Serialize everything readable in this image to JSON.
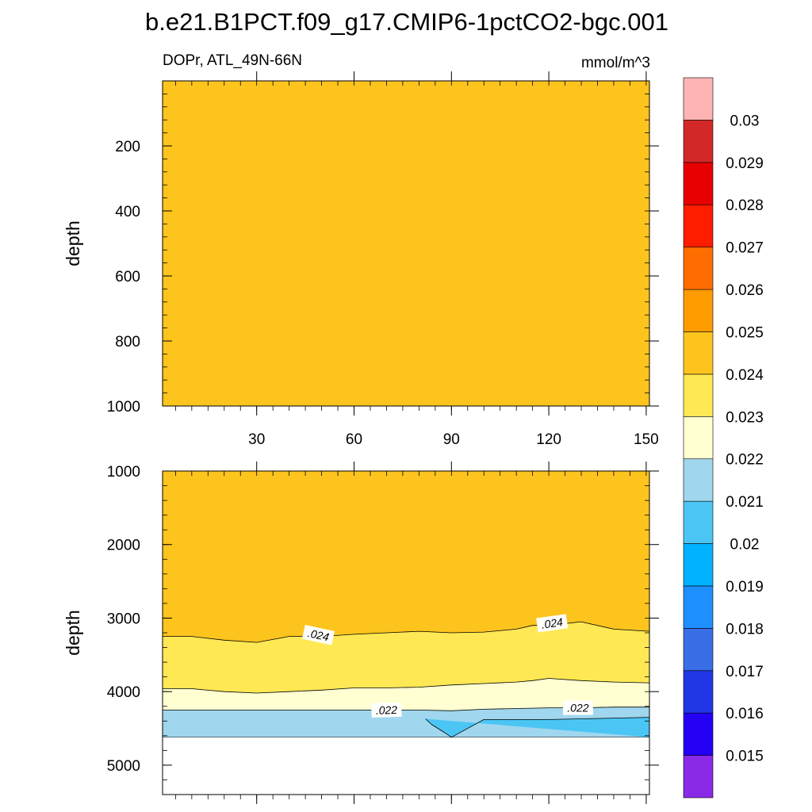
{
  "title": "b.e21.B1PCT.f09_g17.CMIP6-1pctCO2-bgc.001",
  "chart_data": {
    "type": "heatmap",
    "variable_label": "DOPr, ATL_49N-66N",
    "units": "mmol/m^3",
    "colorbar": {
      "colors": [
        "#8a2ae8",
        "#2400f5",
        "#2136e5",
        "#3a6ee6",
        "#1e8fff",
        "#00b2ff",
        "#4bc6f4",
        "#a0d6ee",
        "#ffffd2",
        "#ffe854",
        "#fec41e",
        "#ff9c00",
        "#ff6c00",
        "#ff1d00",
        "#e60000",
        "#d42828",
        "#ffb4b4"
      ],
      "labels": [
        "0.015",
        "0.016",
        "0.017",
        "0.018",
        "0.019",
        "0.02",
        "0.021",
        "0.022",
        "0.023",
        "0.024",
        "0.025",
        "0.026",
        "0.027",
        "0.028",
        "0.029",
        "0.03"
      ]
    },
    "panels": [
      {
        "name": "upper",
        "ylabel": "depth",
        "ylim": [
          1000,
          0
        ],
        "yticks": [
          200,
          400,
          600,
          800,
          1000
        ],
        "xlim": [
          1,
          151
        ],
        "xticks": [
          30,
          60,
          90,
          120,
          150
        ],
        "fill_value": 0.0245
      },
      {
        "name": "lower",
        "ylabel": "depth",
        "ylim": [
          5400,
          1000
        ],
        "yticks": [
          1000,
          2000,
          3000,
          4000,
          5000
        ],
        "xlim": [
          1,
          151
        ],
        "xticks": [
          30,
          60,
          90,
          120,
          150
        ],
        "bottom_depth": 4620,
        "bands": [
          {
            "value": 0.0245,
            "top": "axis",
            "bottom": "c024"
          },
          {
            "value": 0.0235,
            "top": "c024",
            "bottom": "c023"
          },
          {
            "value": 0.0225,
            "top": "c023",
            "bottom": "c022"
          },
          {
            "value": 0.0215,
            "top": "c022",
            "bottom": "floor"
          }
        ],
        "contours": {
          "c024": {
            "x": [
              1,
              10,
              20,
              30,
              40,
              50,
              60,
              70,
              80,
              90,
              100,
              110,
              115,
              120,
              130,
              140,
              151
            ],
            "depth": [
              3250,
              3250,
              3300,
              3330,
              3250,
              3250,
              3220,
              3200,
              3180,
              3200,
              3190,
              3150,
              3100,
              3100,
              3050,
              3150,
              3180
            ]
          },
          "c023": {
            "x": [
              1,
              10,
              20,
              30,
              40,
              50,
              60,
              70,
              80,
              90,
              100,
              110,
              115,
              120,
              130,
              140,
              151
            ],
            "depth": [
              3960,
              3960,
              4000,
              4020,
              4000,
              3980,
              3950,
              3950,
              3940,
              3910,
              3890,
              3870,
              3850,
              3820,
              3850,
              3870,
              3880
            ]
          },
          "c022": {
            "x": [
              1,
              20,
              40,
              60,
              80,
              90,
              100,
              110,
              120,
              130,
              140,
              151
            ],
            "depth": [
              4250,
              4250,
              4250,
              4250,
              4250,
              4260,
              4240,
              4230,
              4220,
              4220,
              4210,
              4210
            ]
          },
          "c021": {
            "x": [
              82,
              84,
              88,
              90,
              100,
              120,
              140,
              151
            ],
            "depth": [
              4370,
              4450,
              4560,
              4620,
              4380,
              4380,
              4360,
              4350
            ]
          }
        },
        "contour_labels": [
          {
            "text": ".024",
            "x": 49,
            "depth": 3230,
            "angle": 12
          },
          {
            "text": ".024",
            "x": 121,
            "depth": 3070,
            "angle": -8
          },
          {
            "text": ".022",
            "x": 70,
            "depth": 4250,
            "angle": -2
          },
          {
            "text": ".022",
            "x": 129,
            "depth": 4220,
            "angle": 0
          }
        ],
        "patch_value": 0.0205
      }
    ]
  }
}
